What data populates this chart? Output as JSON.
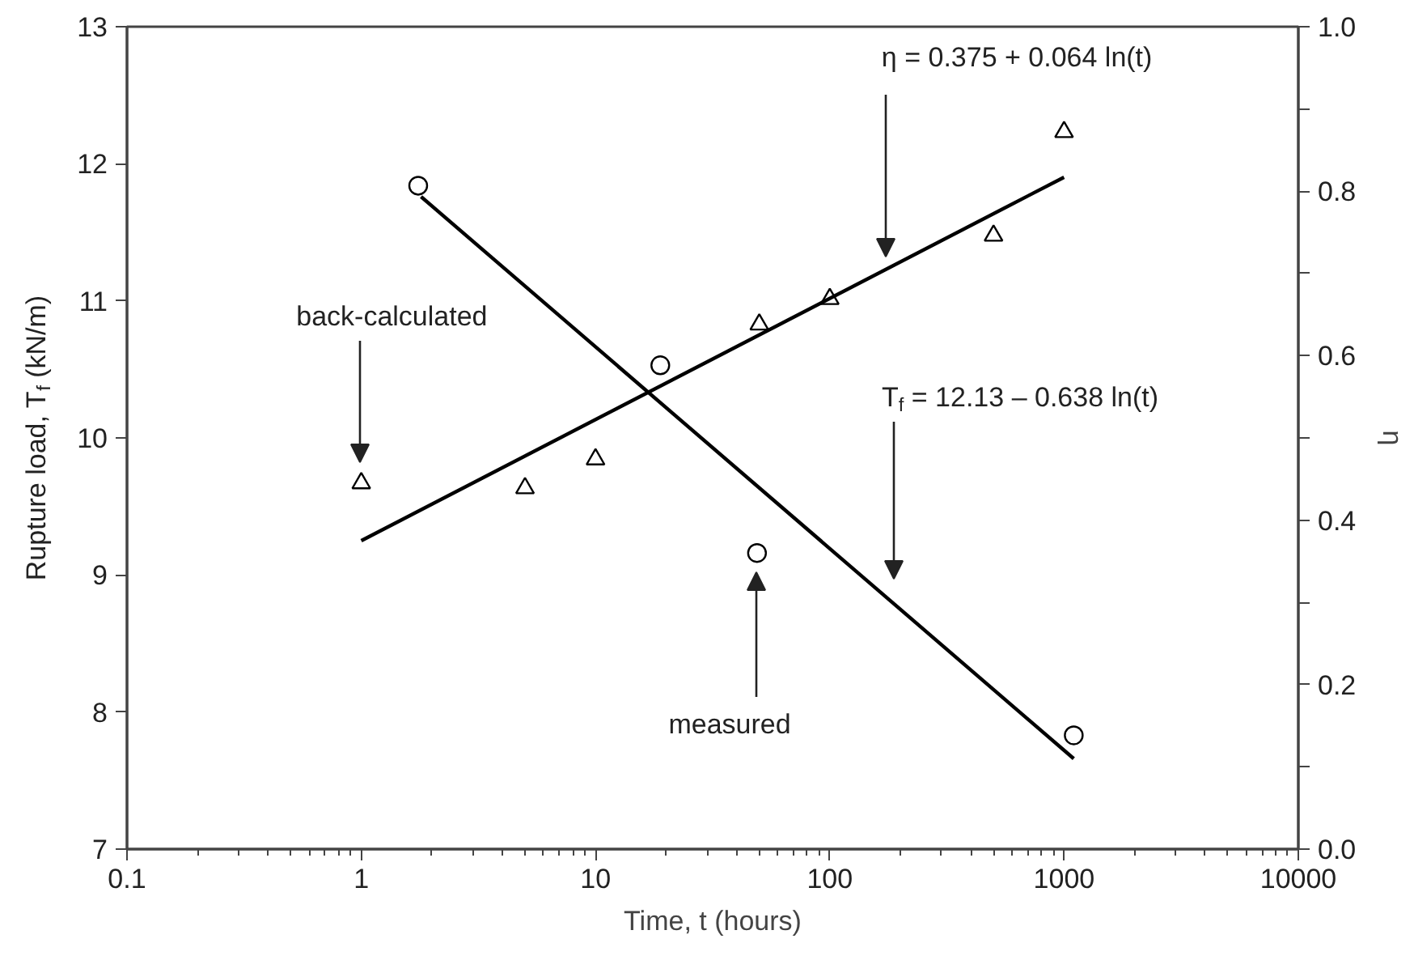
{
  "chart_data": {
    "type": "scatter",
    "xlabel": "Time, t (hours)",
    "ylabel": "Rupture load, T$_{f}$ (kN/m)",
    "y2label": "η",
    "log": "x",
    "grid": false,
    "xlim": [
      0.1,
      10000
    ],
    "xticks": [
      0.1,
      1,
      10,
      100,
      1000,
      10000
    ],
    "ylim": [
      7,
      13
    ],
    "yticks": [
      7,
      8,
      9,
      10,
      11,
      12,
      13
    ],
    "y2lim": [
      0,
      1
    ],
    "y2ticks": [
      {
        "value": 0,
        "label": "0.0"
      },
      {
        "value": 0.1,
        "label": null
      },
      {
        "value": 0.2,
        "label": "0.2"
      },
      {
        "value": 0.3,
        "label": null
      },
      {
        "value": 0.4,
        "label": "0.4"
      },
      {
        "value": 0.5,
        "label": null
      },
      {
        "value": 0.6,
        "label": "0.6"
      },
      {
        "value": 0.7,
        "label": null
      },
      {
        "value": 0.8,
        "label": "0.8"
      },
      {
        "value": 0.9,
        "label": null
      },
      {
        "value": 1,
        "label": "1.0"
      }
    ],
    "series": [
      {
        "marker": "circle",
        "color": "#000000",
        "x": [
          1.75,
          18.9,
          48.9,
          1100
        ],
        "values": [
          11.84,
          10.53,
          9.16,
          7.83
        ]
      },
      {
        "marker": "triangle",
        "axis": "y2",
        "color": "#000000",
        "x": [
          1,
          5,
          10,
          50,
          100,
          500,
          1000
        ],
        "values": [
          0.445,
          0.439,
          0.474,
          0.638,
          0.669,
          0.746,
          0.872
        ]
      },
      {
        "type": "line",
        "color": "#000000",
        "x": [
          1.8,
          1100
        ],
        "values": [
          11.76,
          7.66
        ]
      },
      {
        "type": "line",
        "axis": "y2",
        "color": "#000000",
        "x": [
          1,
          1000
        ],
        "values": [
          0.375,
          0.817
        ]
      }
    ],
    "annotations": [
      "back-calculated",
      "η = 0.375 + 0.064 ln(t)",
      "T$_{f}$ = 12.13 – 0.638 ln(t)",
      "measured"
    ]
  }
}
